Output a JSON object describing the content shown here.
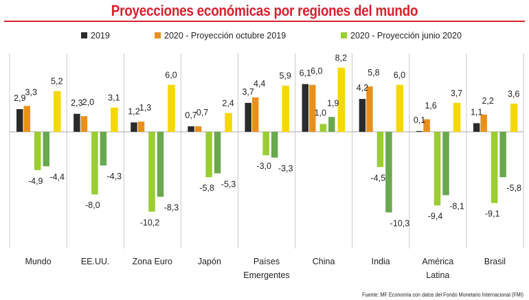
{
  "title": "Proyecciones económicas por regiones del mundo",
  "source": "Fuente: MF Economía con datos del Fondo Monetario Internacional (FMI)",
  "colors": {
    "title": "#d9202e",
    "series_2019": "#2b2b2b",
    "series_oct2019": "#e8901c",
    "series_jun2020_pos": "#f5d800",
    "series_jun2020_neg_a": "#9acd32",
    "series_jun2020_neg_b": "#6aa84f",
    "grid": "#c8c8c8"
  },
  "chart_data": {
    "type": "bar",
    "categories": [
      [
        "Mundo"
      ],
      [
        "EE.UU."
      ],
      [
        "Zona Euro"
      ],
      [
        "Japón"
      ],
      [
        "Países",
        "Emergentes"
      ],
      [
        "China"
      ],
      [
        "India"
      ],
      [
        "América",
        "Latina"
      ],
      [
        "Brasil"
      ]
    ],
    "series": [
      {
        "name": "2019",
        "values": [
          2.9,
          2.3,
          1.2,
          0.7,
          3.7,
          6.1,
          4.2,
          0.1,
          1.1
        ]
      },
      {
        "name": "2020 - Proyección octubre 2019",
        "values": [
          3.3,
          2.0,
          1.3,
          0.7,
          4.4,
          6.0,
          5.8,
          1.6,
          2.2
        ]
      },
      {
        "name": "2020 - Proyección junio 2020",
        "values": [
          5.2,
          3.1,
          6.0,
          2.4,
          5.9,
          8.2,
          6.0,
          3.7,
          3.6
        ],
        "extra_values": [
          [
            -4.9,
            -4.4
          ],
          [
            -8.0,
            -4.3
          ],
          [
            -10.2,
            -8.3
          ],
          [
            -5.8,
            -5.3
          ],
          [
            -3.0,
            -3.3
          ],
          [
            1.0,
            1.9
          ],
          [
            -4.5,
            -10.3
          ],
          [
            -9.4,
            -8.1
          ],
          [
            -9.1,
            -5.8
          ]
        ]
      }
    ],
    "labels": [
      [
        "2,9",
        "3,3",
        "5,2",
        "-4,9",
        "-4,4"
      ],
      [
        "2,3",
        "2,0",
        "3,1",
        "-8,0",
        "-4,3"
      ],
      [
        "1,2",
        "1,3",
        "6,0",
        "-10,2",
        "-8,3"
      ],
      [
        "0,7",
        "0,7",
        "2,4",
        "-5,8",
        "-5,3"
      ],
      [
        "3,7",
        "4,4",
        "5,9",
        "-3,0",
        "-3,3"
      ],
      [
        "6,1",
        "6,0",
        "8,2",
        "1,0",
        "1,9"
      ],
      [
        "4,2",
        "5,8",
        "6,0",
        "-4,5",
        "-10,3"
      ],
      [
        "0,1",
        "1,6",
        "3,7",
        "-9,4",
        "-8,1"
      ],
      [
        "1,1",
        "2,2",
        "3,6",
        "-9,1",
        "-5,8"
      ]
    ],
    "ylim": [
      -12,
      9
    ],
    "legend": "top",
    "grid": true
  }
}
